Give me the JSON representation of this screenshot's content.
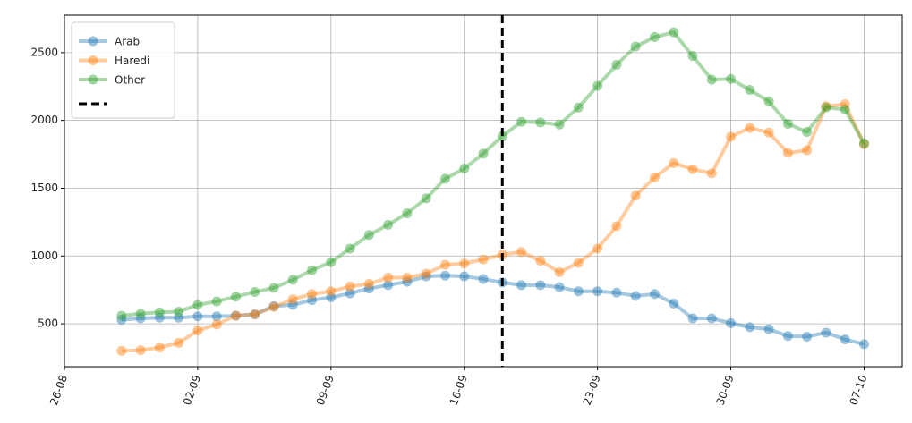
{
  "chart_data": {
    "type": "line",
    "x": [
      "29-08",
      "30-08",
      "31-08",
      "01-09",
      "02-09",
      "03-09",
      "04-09",
      "05-09",
      "06-09",
      "07-09",
      "08-09",
      "09-09",
      "10-09",
      "11-09",
      "12-09",
      "13-09",
      "14-09",
      "15-09",
      "16-09",
      "17-09",
      "18-09",
      "19-09",
      "20-09",
      "21-09",
      "22-09",
      "23-09",
      "24-09",
      "25-09",
      "26-09",
      "27-09",
      "28-09",
      "29-09",
      "30-09",
      "01-10",
      "02-10",
      "03-10",
      "04-10",
      "05-10",
      "06-10",
      "07-10"
    ],
    "series": [
      {
        "name": "Arab",
        "color": "#1f77b4",
        "values": [
          530,
          540,
          545,
          545,
          555,
          555,
          560,
          570,
          630,
          640,
          675,
          695,
          725,
          760,
          785,
          810,
          850,
          855,
          850,
          830,
          805,
          785,
          785,
          770,
          740,
          740,
          730,
          705,
          720,
          650,
          540,
          540,
          505,
          475,
          460,
          410,
          405,
          435,
          385,
          350
        ]
      },
      {
        "name": "Haredi",
        "color": "#ff7f0e",
        "values": [
          300,
          305,
          325,
          360,
          450,
          495,
          560,
          570,
          625,
          680,
          720,
          740,
          775,
          795,
          840,
          840,
          870,
          935,
          945,
          975,
          1010,
          1030,
          965,
          880,
          950,
          1055,
          1220,
          1445,
          1580,
          1685,
          1640,
          1610,
          1880,
          1945,
          1910,
          1760,
          1780,
          2105,
          2120,
          1825
        ]
      },
      {
        "name": "Other",
        "color": "#2ca02c",
        "values": [
          560,
          575,
          585,
          590,
          640,
          665,
          700,
          735,
          765,
          825,
          895,
          955,
          1055,
          1155,
          1230,
          1315,
          1425,
          1570,
          1645,
          1755,
          1885,
          1990,
          1985,
          1970,
          2095,
          2255,
          2410,
          2545,
          2615,
          2650,
          2475,
          2300,
          2305,
          2225,
          2140,
          1975,
          1915,
          2095,
          2080,
          1830
        ]
      }
    ],
    "vline": {
      "x": "18-09",
      "color": "#000000",
      "style": "dashed"
    },
    "xlim": [
      "26-08",
      "09-10"
    ],
    "xticks": [
      "26-08",
      "02-09",
      "09-09",
      "16-09",
      "23-09",
      "30-09",
      "07-10"
    ],
    "ylim": [
      184,
      2776
    ],
    "yticks": [
      500,
      1000,
      1500,
      2000,
      2500
    ],
    "grid": true,
    "legend": "upper-left"
  }
}
